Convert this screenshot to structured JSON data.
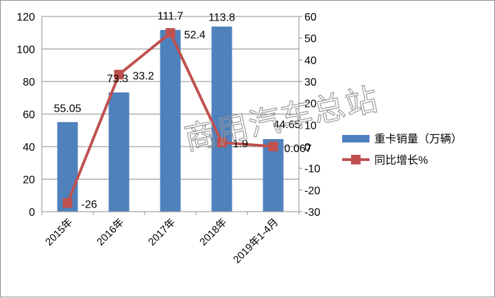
{
  "chart_data": {
    "type": "bar",
    "categories": [
      "2015年",
      "2016年",
      "2017年",
      "2018年",
      "2019年1-4月"
    ],
    "series": [
      {
        "name": "重卡销量（万辆）",
        "type": "bar",
        "axis": "left",
        "color": "#4f81bd",
        "values": [
          55.05,
          73.3,
          111.7,
          113.8,
          44.65
        ],
        "labels": [
          "55.05",
          "73.3",
          "111.7",
          "113.8",
          "44.65"
        ]
      },
      {
        "name": "同比增长%",
        "type": "line",
        "axis": "right",
        "color": "#c0504d",
        "values": [
          -26,
          33.2,
          52.4,
          1.9,
          0.067
        ],
        "labels": [
          "-26",
          "33.2",
          "52.4",
          "1.9",
          "0.067"
        ]
      }
    ],
    "ylim_left": [
      0,
      120
    ],
    "yticks_left": [
      "0",
      "20",
      "40",
      "60",
      "80",
      "100",
      "120"
    ],
    "ylim_right": [
      -30,
      60
    ],
    "yticks_right": [
      "-30",
      "-20",
      "-10",
      "0",
      "10",
      "20",
      "30",
      "40",
      "50",
      "60"
    ],
    "grid": true,
    "legend_position": "right"
  },
  "watermark": "商用汽车总站"
}
